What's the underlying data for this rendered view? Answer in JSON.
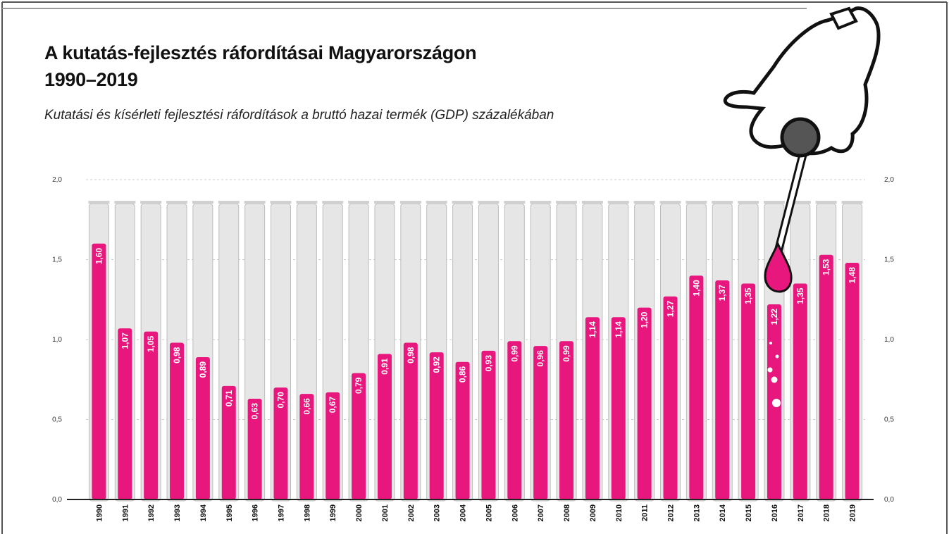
{
  "chart_data": {
    "type": "bar",
    "title_line1": "A kutatás-fejlesztés ráfordításai Magyarországon",
    "title_line2": "1990–2019",
    "subtitle": "Kutatási és kísérleti fejlesztési ráfordítások a bruttó hazai termék (GDP) százalékában",
    "categories": [
      "1990",
      "1991",
      "1992",
      "1993",
      "1994",
      "1995",
      "1996",
      "1997",
      "1998",
      "1999",
      "2000",
      "2001",
      "2002",
      "2003",
      "2004",
      "2005",
      "2006",
      "2007",
      "2008",
      "2009",
      "2010",
      "2011",
      "2012",
      "2013",
      "2014",
      "2015",
      "2016",
      "2017",
      "2018",
      "2019"
    ],
    "values": [
      1.6,
      1.07,
      1.05,
      0.98,
      0.89,
      0.71,
      0.63,
      0.7,
      0.66,
      0.67,
      0.79,
      0.91,
      0.98,
      0.92,
      0.86,
      0.93,
      0.99,
      0.96,
      0.99,
      1.14,
      1.14,
      1.2,
      1.27,
      1.4,
      1.37,
      1.35,
      1.22,
      1.35,
      1.53,
      1.48
    ],
    "value_labels": [
      "1,60",
      "1,07",
      "1,05",
      "0,98",
      "0,89",
      "0,71",
      "0,63",
      "0,70",
      "0,66",
      "0,67",
      "0,79",
      "0,91",
      "0,98",
      "0,92",
      "0,86",
      "0,93",
      "0,99",
      "0,96",
      "0,99",
      "1,14",
      "1,14",
      "1,20",
      "1,27",
      "1,40",
      "1,37",
      "1,35",
      "1,22",
      "1,35",
      "1,53",
      "1,48"
    ],
    "ylim": [
      0,
      2.0
    ],
    "y_ticks": [
      0,
      0.5,
      1.0,
      1.5,
      2.0
    ],
    "y_tick_labels": [
      "0,0",
      "0,5",
      "1,0",
      "1,5",
      "2,0"
    ],
    "tube_max": 1.85,
    "xlabel": "",
    "ylabel": "",
    "grid": true,
    "colors": {
      "bar": "#e8177d",
      "tube": "#e6e6e6",
      "tube_border": "#bdbdbd",
      "axis": "#222222",
      "grid": "#cccccc"
    }
  }
}
